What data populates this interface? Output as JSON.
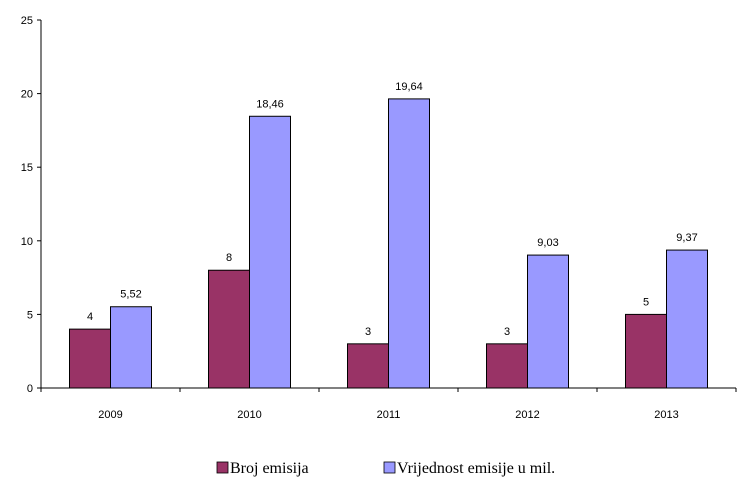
{
  "chart_data": {
    "type": "bar",
    "categories": [
      "2009",
      "2010",
      "2011",
      "2012",
      "2013"
    ],
    "series": [
      {
        "name": "Broj emisija",
        "values": [
          4,
          8,
          3,
          3,
          5
        ],
        "labels": [
          "4",
          "8",
          "3",
          "3",
          "5"
        ],
        "color": "#993366"
      },
      {
        "name": "Vrijednost emisije u mil.",
        "values": [
          5.52,
          18.46,
          19.64,
          9.03,
          9.37
        ],
        "labels": [
          "5,52",
          "18,46",
          "19,64",
          "9,03",
          "9,37"
        ],
        "color": "#9999ff"
      }
    ],
    "ylim": [
      0,
      25
    ],
    "yticks": [
      "0",
      "5",
      "10",
      "15",
      "20",
      "25"
    ],
    "grid": false,
    "legend_position": "bottom"
  }
}
